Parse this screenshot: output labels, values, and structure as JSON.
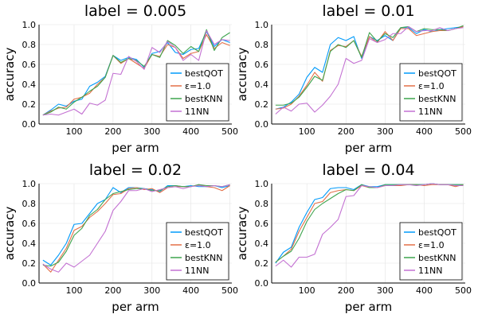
{
  "chart_data": [
    {
      "type": "line",
      "title": "label = 0.005",
      "xlabel": "per arm",
      "ylabel": "accuracy",
      "xlim": [
        10,
        505
      ],
      "ylim": [
        0,
        1
      ],
      "xticks": [
        100,
        200,
        300,
        400,
        500
      ],
      "yticks": [
        0.0,
        0.2,
        0.4,
        0.6,
        0.8,
        1.0
      ],
      "x": [
        20,
        40,
        60,
        80,
        100,
        120,
        140,
        160,
        180,
        200,
        220,
        240,
        260,
        280,
        300,
        320,
        340,
        360,
        380,
        400,
        420,
        440,
        460,
        480,
        500
      ],
      "series": [
        {
          "name": "bestQOT",
          "color": "#009AFA",
          "values": [
            0.09,
            0.14,
            0.2,
            0.18,
            0.23,
            0.25,
            0.38,
            0.42,
            0.48,
            0.69,
            0.64,
            0.67,
            0.65,
            0.57,
            0.71,
            0.73,
            0.82,
            0.72,
            0.7,
            0.75,
            0.76,
            0.93,
            0.78,
            0.85,
            0.82
          ]
        },
        {
          "name": "ε=1.0",
          "color": "#E36F47",
          "values": [
            0.09,
            0.13,
            0.16,
            0.17,
            0.25,
            0.27,
            0.31,
            0.4,
            0.47,
            0.69,
            0.61,
            0.66,
            0.61,
            0.56,
            0.7,
            0.68,
            0.8,
            0.77,
            0.66,
            0.71,
            0.73,
            0.9,
            0.76,
            0.82,
            0.79
          ]
        },
        {
          "name": "bestKNN",
          "color": "#3EA44E",
          "values": [
            0.09,
            0.12,
            0.17,
            0.15,
            0.22,
            0.27,
            0.33,
            0.38,
            0.47,
            0.69,
            0.62,
            0.66,
            0.64,
            0.58,
            0.7,
            0.67,
            0.84,
            0.79,
            0.71,
            0.78,
            0.73,
            0.95,
            0.74,
            0.87,
            0.92
          ]
        },
        {
          "name": "11NN",
          "color": "#C371D2",
          "values": [
            0.09,
            0.1,
            0.09,
            0.12,
            0.15,
            0.1,
            0.21,
            0.19,
            0.24,
            0.51,
            0.5,
            0.68,
            0.63,
            0.55,
            0.77,
            0.72,
            0.83,
            0.77,
            0.64,
            0.7,
            0.64,
            0.94,
            0.8,
            0.85,
            0.84
          ]
        }
      ]
    },
    {
      "type": "line",
      "title": "label = 0.01",
      "xlabel": "per arm",
      "ylabel": "accuracy",
      "xlim": [
        10,
        505
      ],
      "ylim": [
        0,
        1
      ],
      "xticks": [
        100,
        200,
        300,
        400,
        500
      ],
      "yticks": [
        0.0,
        0.2,
        0.4,
        0.6,
        0.8,
        1.0
      ],
      "x": [
        20,
        40,
        60,
        80,
        100,
        120,
        140,
        160,
        180,
        200,
        220,
        240,
        260,
        280,
        300,
        320,
        340,
        360,
        380,
        400,
        420,
        440,
        460,
        480,
        500
      ],
      "series": [
        {
          "name": "bestQOT",
          "color": "#009AFA",
          "values": [
            0.15,
            0.17,
            0.22,
            0.3,
            0.47,
            0.57,
            0.52,
            0.8,
            0.87,
            0.84,
            0.88,
            0.66,
            0.88,
            0.84,
            0.89,
            0.84,
            0.97,
            0.97,
            0.91,
            0.95,
            0.93,
            0.95,
            0.96,
            0.97,
            0.98
          ]
        },
        {
          "name": "ε=1.0",
          "color": "#E36F47",
          "values": [
            0.15,
            0.16,
            0.2,
            0.28,
            0.39,
            0.52,
            0.43,
            0.74,
            0.79,
            0.78,
            0.84,
            0.68,
            0.88,
            0.82,
            0.93,
            0.84,
            0.96,
            0.96,
            0.89,
            0.91,
            0.93,
            0.94,
            0.94,
            0.96,
            0.98
          ]
        },
        {
          "name": "bestKNN",
          "color": "#3EA44E",
          "values": [
            0.19,
            0.19,
            0.21,
            0.27,
            0.37,
            0.48,
            0.44,
            0.73,
            0.8,
            0.77,
            0.84,
            0.67,
            0.92,
            0.83,
            0.91,
            0.87,
            0.97,
            0.98,
            0.93,
            0.96,
            0.95,
            0.95,
            0.94,
            0.96,
            0.99
          ]
        },
        {
          "name": "11NN",
          "color": "#C371D2",
          "values": [
            0.1,
            0.17,
            0.13,
            0.2,
            0.21,
            0.12,
            0.19,
            0.28,
            0.4,
            0.66,
            0.61,
            0.64,
            0.86,
            0.82,
            0.85,
            0.91,
            0.91,
            0.98,
            0.93,
            0.94,
            0.94,
            0.97,
            0.94,
            0.96,
            0.97
          ]
        }
      ]
    },
    {
      "type": "line",
      "title": "label = 0.02",
      "xlabel": "per arm",
      "ylabel": "accuracy",
      "xlim": [
        10,
        505
      ],
      "ylim": [
        0,
        1
      ],
      "xticks": [
        100,
        200,
        300,
        400,
        500
      ],
      "yticks": [
        0.0,
        0.2,
        0.4,
        0.6,
        0.8,
        1.0
      ],
      "x": [
        20,
        40,
        60,
        80,
        100,
        120,
        140,
        160,
        180,
        200,
        220,
        240,
        260,
        280,
        300,
        320,
        340,
        360,
        380,
        400,
        420,
        440,
        460,
        480,
        500
      ],
      "series": [
        {
          "name": "bestQOT",
          "color": "#009AFA",
          "values": [
            0.23,
            0.18,
            0.28,
            0.4,
            0.59,
            0.6,
            0.7,
            0.8,
            0.84,
            0.96,
            0.91,
            0.96,
            0.96,
            0.95,
            0.94,
            0.92,
            0.98,
            0.98,
            0.97,
            0.98,
            0.97,
            0.97,
            0.98,
            0.96,
            0.98
          ]
        },
        {
          "name": "ε=1.0",
          "color": "#E36F47",
          "values": [
            0.19,
            0.11,
            0.23,
            0.35,
            0.53,
            0.57,
            0.66,
            0.72,
            0.8,
            0.89,
            0.9,
            0.95,
            0.96,
            0.94,
            0.95,
            0.91,
            0.96,
            0.97,
            0.97,
            0.97,
            0.99,
            0.97,
            0.96,
            0.93,
            0.98
          ]
        },
        {
          "name": "bestKNN",
          "color": "#3EA44E",
          "values": [
            0.18,
            0.17,
            0.21,
            0.32,
            0.48,
            0.55,
            0.68,
            0.74,
            0.84,
            0.9,
            0.92,
            0.94,
            0.95,
            0.95,
            0.93,
            0.93,
            0.97,
            0.98,
            0.97,
            0.97,
            0.99,
            0.98,
            0.98,
            0.97,
            0.99
          ]
        },
        {
          "name": "11NN",
          "color": "#C371D2",
          "values": [
            0.19,
            0.14,
            0.11,
            0.2,
            0.16,
            0.22,
            0.28,
            0.4,
            0.52,
            0.73,
            0.82,
            0.93,
            0.93,
            0.95,
            0.92,
            0.94,
            0.96,
            0.97,
            0.95,
            0.97,
            0.98,
            0.97,
            0.98,
            0.97,
            0.99
          ]
        }
      ]
    },
    {
      "type": "line",
      "title": "label = 0.04",
      "xlabel": "per arm",
      "ylabel": "accuracy",
      "xlim": [
        10,
        505
      ],
      "ylim": [
        0,
        1
      ],
      "xticks": [
        100,
        200,
        300,
        400,
        500
      ],
      "yticks": [
        0.0,
        0.2,
        0.4,
        0.6,
        0.8,
        1.0
      ],
      "x": [
        20,
        40,
        60,
        80,
        100,
        120,
        140,
        160,
        180,
        200,
        220,
        240,
        260,
        280,
        300,
        320,
        340,
        360,
        380,
        400,
        420,
        440,
        460,
        480,
        500
      ],
      "series": [
        {
          "name": "bestQOT",
          "color": "#009AFA",
          "values": [
            0.2,
            0.31,
            0.36,
            0.56,
            0.71,
            0.84,
            0.86,
            0.95,
            0.96,
            0.96,
            0.94,
            0.99,
            0.97,
            0.97,
            0.99,
            0.99,
            0.99,
            0.99,
            0.99,
            0.99,
            1.0,
            0.99,
            0.99,
            0.99,
            0.99
          ]
        },
        {
          "name": "ε=1.0",
          "color": "#E36F47",
          "values": [
            0.21,
            0.27,
            0.34,
            0.52,
            0.66,
            0.8,
            0.82,
            0.91,
            0.93,
            0.94,
            0.93,
            0.98,
            0.96,
            0.96,
            0.98,
            0.98,
            0.98,
            0.99,
            0.99,
            0.98,
            0.99,
            0.99,
            0.99,
            0.97,
            0.99
          ]
        },
        {
          "name": "bestKNN",
          "color": "#3EA44E",
          "values": [
            0.21,
            0.27,
            0.32,
            0.45,
            0.62,
            0.74,
            0.8,
            0.85,
            0.9,
            0.94,
            0.93,
            0.99,
            0.96,
            0.96,
            0.99,
            0.99,
            0.99,
            0.99,
            0.99,
            0.99,
            1.0,
            0.99,
            0.99,
            0.99,
            0.99
          ]
        },
        {
          "name": "11NN",
          "color": "#C371D2",
          "values": [
            0.17,
            0.23,
            0.16,
            0.26,
            0.26,
            0.29,
            0.49,
            0.56,
            0.64,
            0.87,
            0.88,
            0.98,
            0.97,
            0.96,
            0.98,
            0.98,
            0.99,
            0.99,
            0.98,
            0.99,
            1.0,
            0.99,
            0.99,
            0.98,
            0.98
          ]
        }
      ]
    }
  ]
}
